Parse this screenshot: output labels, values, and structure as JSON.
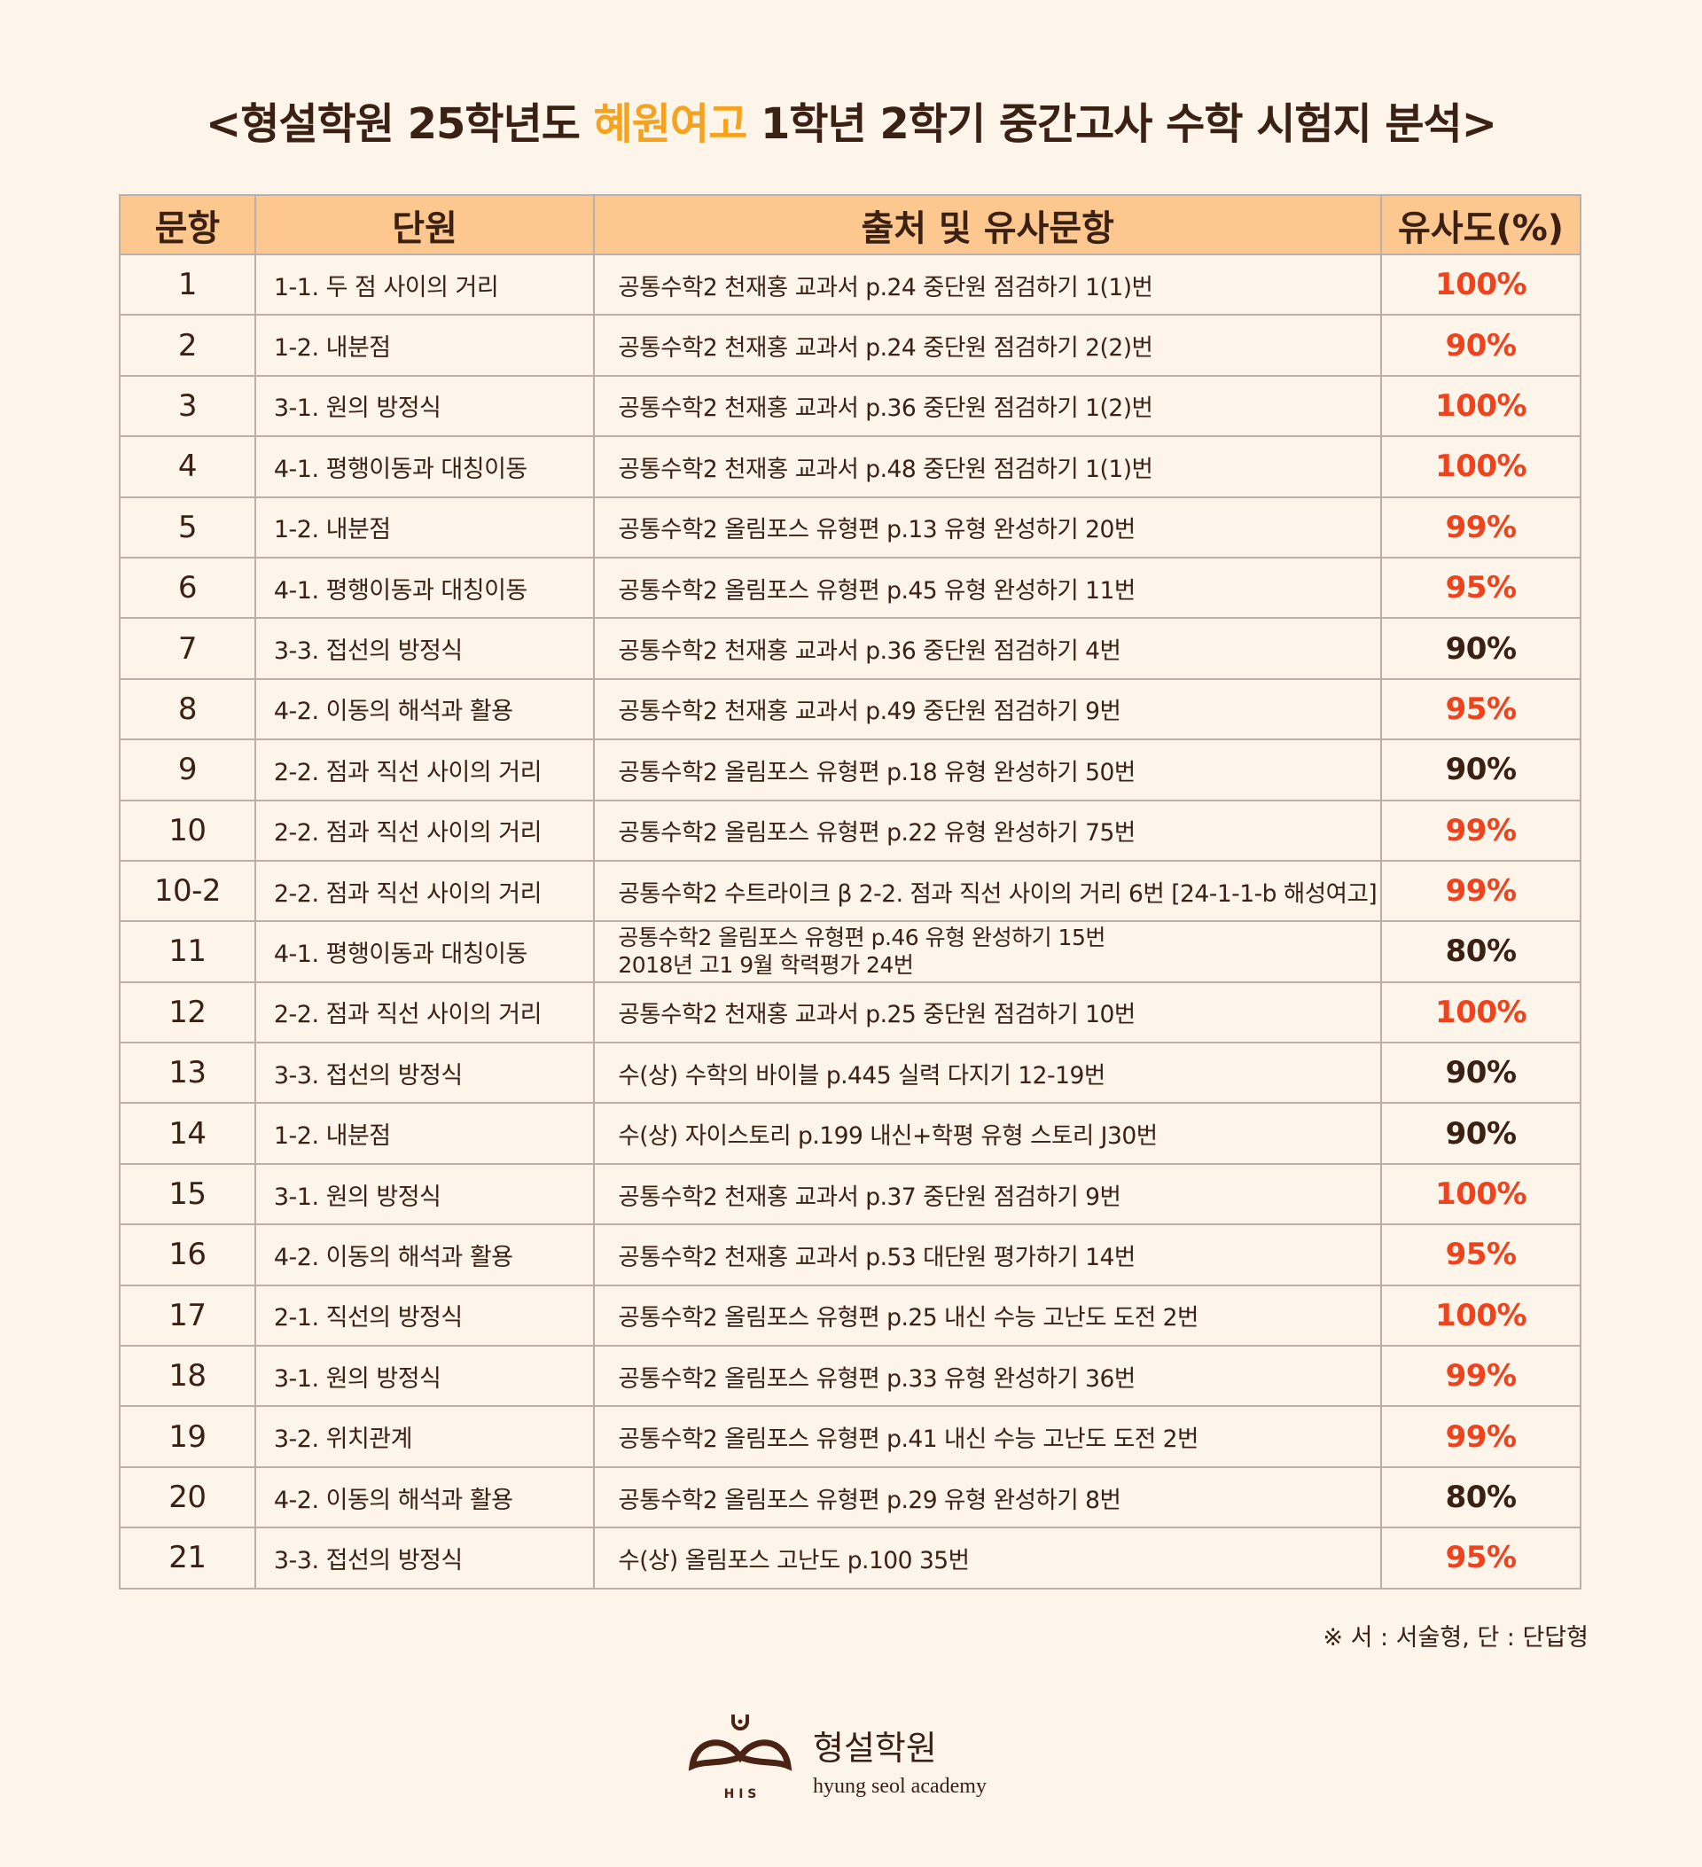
{
  "title": {
    "prefix": "<형설학원 25학년도 ",
    "highlight": "혜원여고",
    "suffix": " 1학년 2학기 중간고사 수학 시험지 분석>"
  },
  "colors": {
    "highlight": "#f5a31f",
    "header_bg": "#fdc88f",
    "high_pct": "#f0421c",
    "normal_pct": "#3b2014"
  },
  "headers": [
    "문항",
    "단원",
    "출처 및 유사문항",
    "유사도(%)"
  ],
  "rows": [
    {
      "no": "1",
      "unit": "1-1. 두 점 사이의 거리",
      "source": [
        "공통수학2 천재홍 교과서 p.24 중단원 점검하기 1(1)번"
      ],
      "pct": "100%",
      "hl": true
    },
    {
      "no": "2",
      "unit": "1-2. 내분점",
      "source": [
        "공통수학2 천재홍 교과서 p.24 중단원 점검하기 2(2)번"
      ],
      "pct": "90%",
      "hl": true
    },
    {
      "no": "3",
      "unit": "3-1. 원의 방정식",
      "source": [
        "공통수학2 천재홍 교과서 p.36 중단원 점검하기 1(2)번"
      ],
      "pct": "100%",
      "hl": true
    },
    {
      "no": "4",
      "unit": "4-1. 평행이동과 대칭이동",
      "source": [
        "공통수학2 천재홍 교과서 p.48 중단원 점검하기 1(1)번"
      ],
      "pct": "100%",
      "hl": true
    },
    {
      "no": "5",
      "unit": "1-2. 내분점",
      "source": [
        "공통수학2 올림포스 유형편 p.13 유형 완성하기 20번"
      ],
      "pct": "99%",
      "hl": true
    },
    {
      "no": "6",
      "unit": "4-1. 평행이동과 대칭이동",
      "source": [
        "공통수학2 올림포스 유형편 p.45 유형 완성하기 11번"
      ],
      "pct": "95%",
      "hl": true
    },
    {
      "no": "7",
      "unit": "3-3. 접선의 방정식",
      "source": [
        "공통수학2 천재홍 교과서 p.36 중단원 점검하기 4번"
      ],
      "pct": "90%",
      "hl": false
    },
    {
      "no": "8",
      "unit": "4-2. 이동의 해석과 활용",
      "source": [
        "공통수학2 천재홍 교과서 p.49 중단원 점검하기 9번"
      ],
      "pct": "95%",
      "hl": true
    },
    {
      "no": "9",
      "unit": "2-2. 점과 직선 사이의 거리",
      "source": [
        "공통수학2 올림포스 유형편 p.18 유형 완성하기 50번"
      ],
      "pct": "90%",
      "hl": false
    },
    {
      "no": "10",
      "unit": "2-2. 점과 직선 사이의 거리",
      "source": [
        "공통수학2 올림포스 유형편 p.22 유형 완성하기 75번"
      ],
      "pct": "99%",
      "hl": true
    },
    {
      "no": "10-2",
      "unit": "2-2. 점과 직선 사이의 거리",
      "source": [
        "공통수학2 수트라이크 β 2-2. 점과 직선 사이의 거리 6번 [24-1-1-b 해성여고]"
      ],
      "pct": "99%",
      "hl": true
    },
    {
      "no": "11",
      "unit": "4-1. 평행이동과 대칭이동",
      "source": [
        "공통수학2 올림포스 유형편 p.46 유형 완성하기 15번",
        "2018년 고1 9월 학력평가 24번"
      ],
      "pct": "80%",
      "hl": false
    },
    {
      "no": "12",
      "unit": "2-2. 점과 직선 사이의 거리",
      "source": [
        "공통수학2 천재홍 교과서 p.25 중단원 점검하기 10번"
      ],
      "pct": "100%",
      "hl": true
    },
    {
      "no": "13",
      "unit": "3-3. 접선의 방정식",
      "source": [
        "수(상) 수학의 바이블 p.445 실력 다지기 12-19번"
      ],
      "pct": "90%",
      "hl": false
    },
    {
      "no": "14",
      "unit": "1-2. 내분점",
      "source": [
        "수(상) 자이스토리 p.199 내신+학평 유형 스토리 J30번"
      ],
      "pct": "90%",
      "hl": false
    },
    {
      "no": "15",
      "unit": "3-1. 원의 방정식",
      "source": [
        "공통수학2 천재홍 교과서 p.37 중단원 점검하기 9번"
      ],
      "pct": "100%",
      "hl": true
    },
    {
      "no": "16",
      "unit": "4-2. 이동의 해석과 활용",
      "source": [
        "공통수학2 천재홍 교과서 p.53 대단원 평가하기 14번"
      ],
      "pct": "95%",
      "hl": true
    },
    {
      "no": "17",
      "unit": "2-1. 직선의 방정식",
      "source": [
        "공통수학2 올림포스 유형편 p.25 내신 수능 고난도 도전 2번"
      ],
      "pct": "100%",
      "hl": true
    },
    {
      "no": "18",
      "unit": "3-1. 원의 방정식",
      "source": [
        "공통수학2 올림포스 유형편 p.33 유형 완성하기 36번"
      ],
      "pct": "99%",
      "hl": true
    },
    {
      "no": "19",
      "unit": "3-2. 위치관계",
      "source": [
        "공통수학2 올림포스 유형편 p.41 내신 수능 고난도 도전 2번"
      ],
      "pct": "99%",
      "hl": true
    },
    {
      "no": "20",
      "unit": "4-2. 이동의 해석과 활용",
      "source": [
        "공통수학2 올림포스 유형편 p.29 유형 완성하기 8번"
      ],
      "pct": "80%",
      "hl": false
    },
    {
      "no": "21",
      "unit": "3-3. 접선의 방정식",
      "source": [
        "수(상) 올림포스 고난도 p.100 35번"
      ],
      "pct": "95%",
      "hl": true
    }
  ],
  "note": "※ 서 : 서술형, 단 : 단답형",
  "logo": {
    "name_ko": "형설학원",
    "name_en": "hyung seol academy",
    "mark_text": "HIS"
  }
}
